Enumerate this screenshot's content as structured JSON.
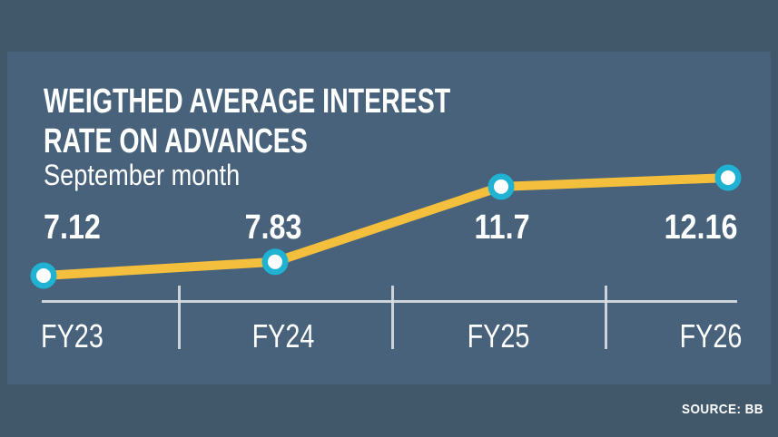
{
  "header": {
    "title_line1": "WEIGTHED AVERAGE INTEREST",
    "title_line2": "RATE ON ADVANCES",
    "subtitle": "September month"
  },
  "footer": {
    "source_label": "SOURCE: BB"
  },
  "chart_data": {
    "type": "line",
    "title": "WEIGTHED AVERAGE INTEREST RATE ON ADVANCES",
    "subtitle": "September month",
    "categories": [
      "FY23",
      "FY24",
      "FY25",
      "FY26"
    ],
    "values": [
      7.12,
      7.83,
      11.7,
      12.16
    ],
    "value_labels": [
      "7.12",
      "7.83",
      "11.7",
      "12.16"
    ],
    "xlabel": "",
    "ylabel": "",
    "ylim": [
      7,
      13
    ],
    "grid": false,
    "legend": "none",
    "marker_style": "ring",
    "line_color": "#F4BF3C",
    "marker_outer_color": "#1FB2D3",
    "marker_inner_color": "#FFFFFF",
    "axis_color": "#D8DDE2"
  },
  "theme": {
    "background": "#41586A",
    "panel": "#47627A",
    "text": "#FFFFFF"
  }
}
